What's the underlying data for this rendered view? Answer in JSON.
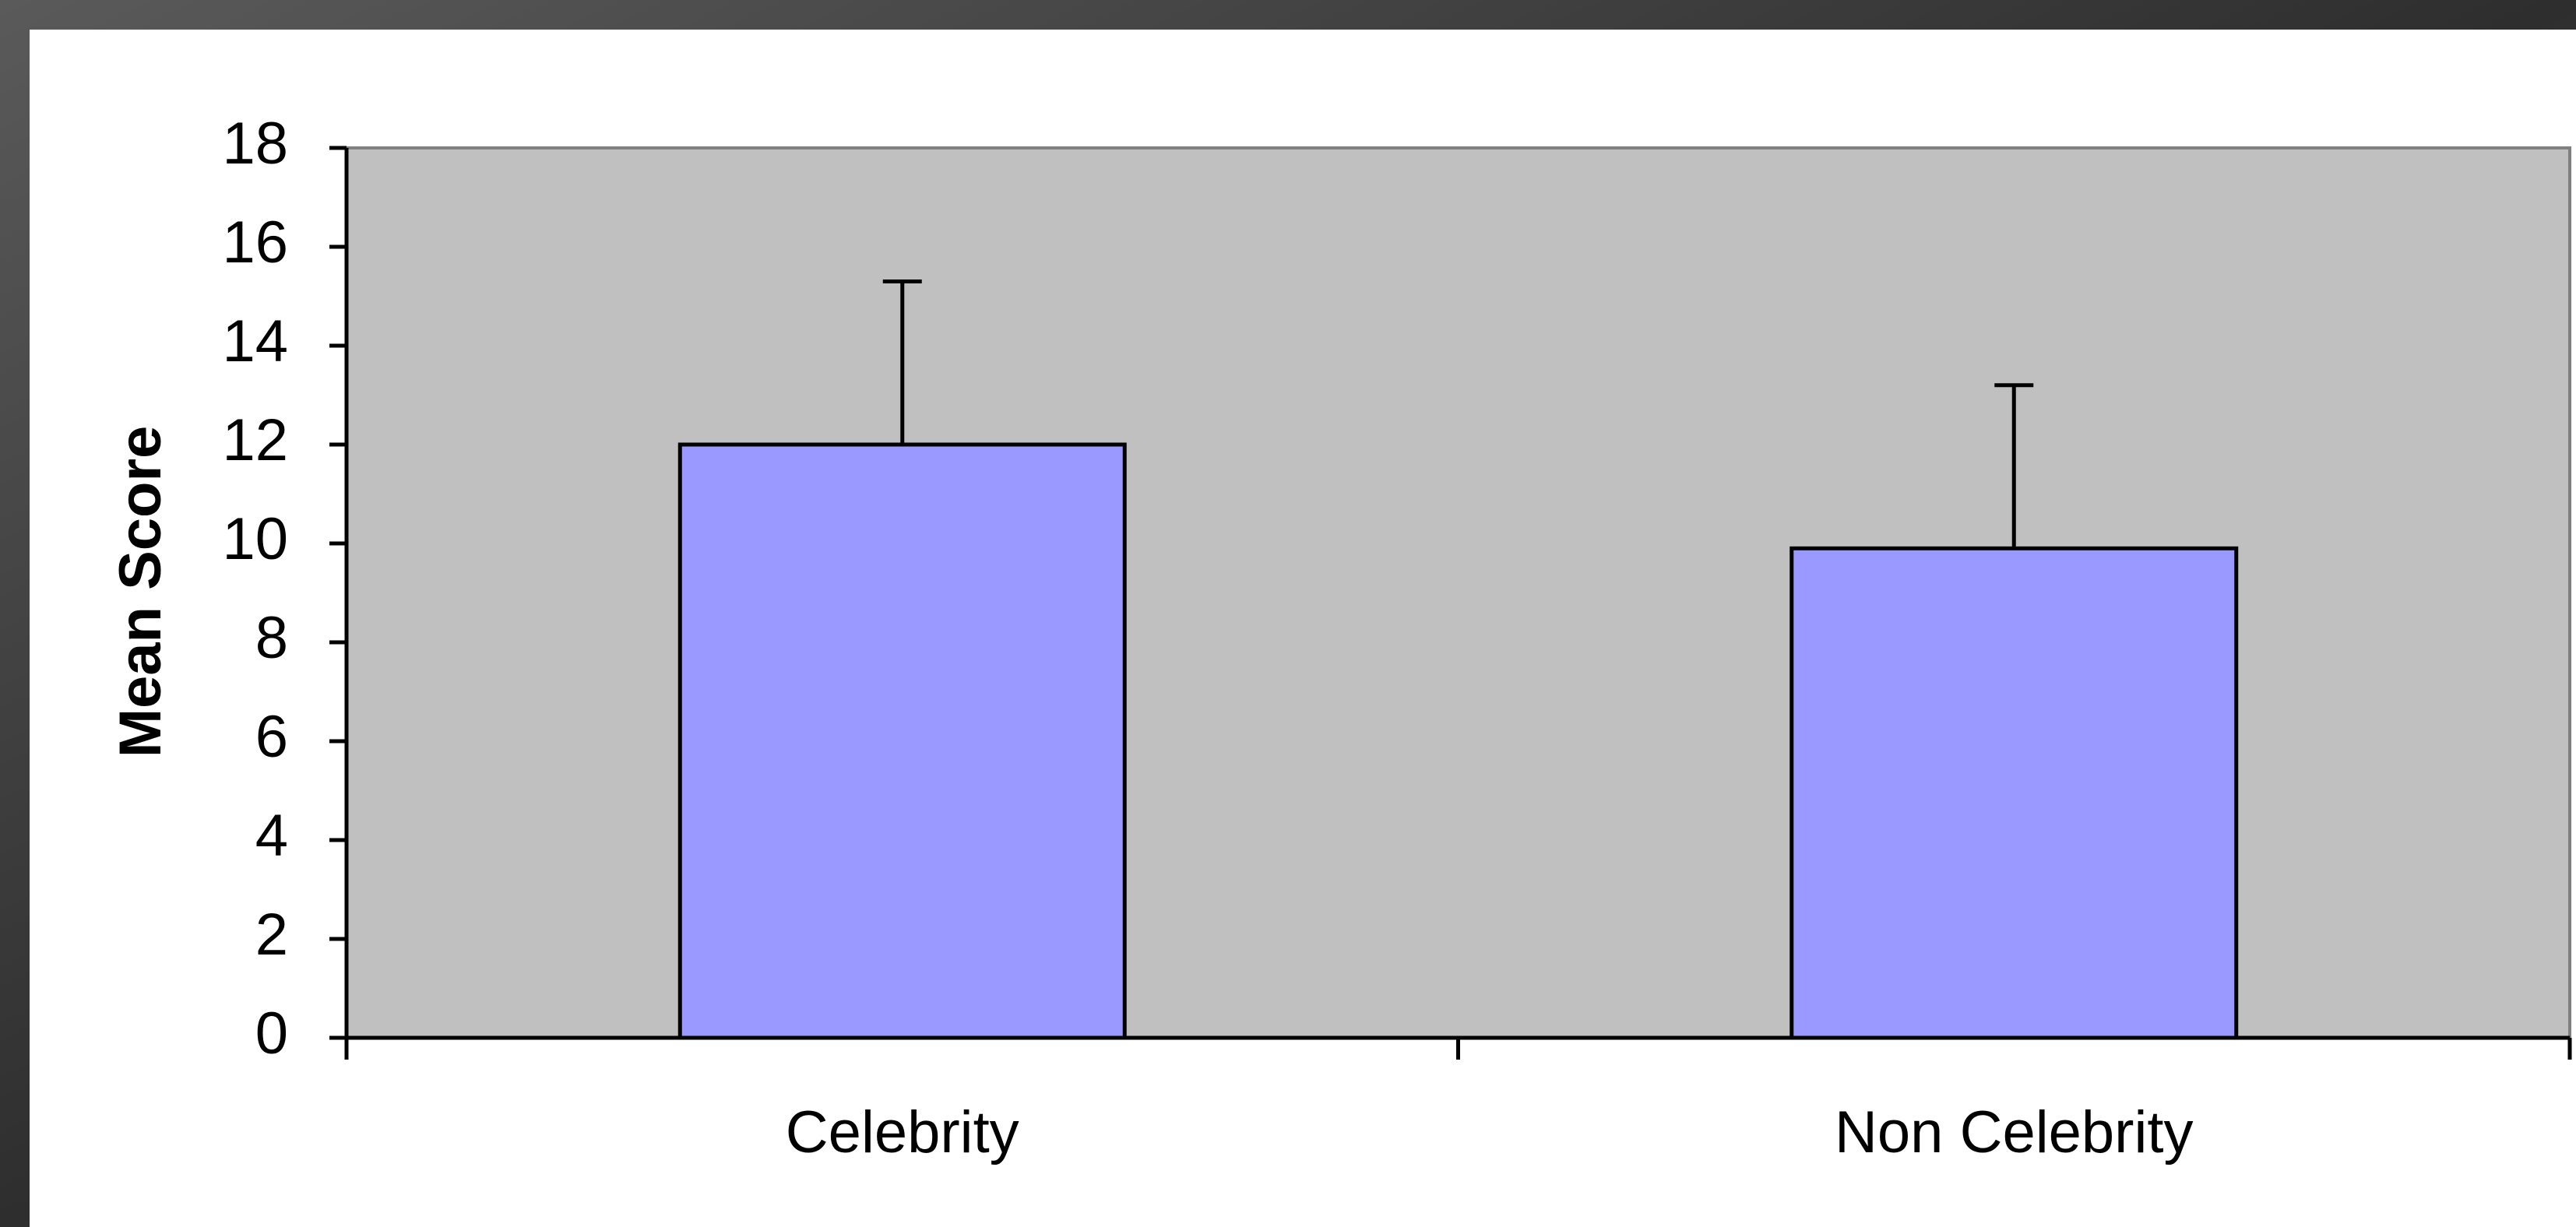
{
  "chart_data": {
    "type": "bar",
    "y_label": "Mean Score",
    "categories": [
      "Celebrity",
      "Non Celebrity"
    ],
    "values": [
      12,
      9.9
    ],
    "errors": [
      3.3,
      3.3
    ],
    "color": "#9999ff",
    "plot_background": "#c0c0c0",
    "ylim": [
      0,
      18
    ],
    "yticks": [
      0,
      2,
      4,
      6,
      8,
      10,
      12,
      14,
      16,
      18
    ]
  }
}
